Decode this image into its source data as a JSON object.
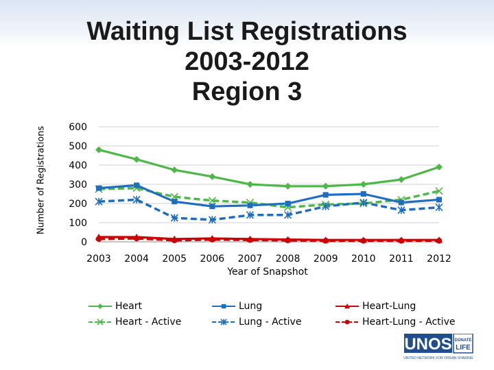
{
  "chart_data": {
    "type": "line",
    "title_lines": [
      "Waiting List Registrations",
      "2003-2012",
      "Region 3"
    ],
    "xlabel": "Year of Snapshot",
    "ylabel": "Number of Registrations",
    "categories": [
      "2003",
      "2004",
      "2005",
      "2006",
      "2007",
      "2008",
      "2009",
      "2010",
      "2011",
      "2012"
    ],
    "ylim": [
      0,
      600
    ],
    "yticks": [
      "0",
      "100",
      "200",
      "300",
      "400",
      "500",
      "600"
    ],
    "grid": true,
    "legend_position": "bottom",
    "series": [
      {
        "name": "Heart",
        "color": "#4db848",
        "dash": false,
        "marker": "diamond",
        "values": [
          480,
          430,
          375,
          340,
          300,
          290,
          290,
          300,
          325,
          390
        ]
      },
      {
        "name": "Heart - Active",
        "color": "#4db848",
        "dash": true,
        "marker": "x",
        "values": [
          275,
          280,
          235,
          215,
          205,
          180,
          195,
          200,
          220,
          265
        ]
      },
      {
        "name": "Lung",
        "color": "#1f6dc0",
        "dash": false,
        "marker": "square",
        "values": [
          280,
          295,
          210,
          185,
          190,
          200,
          245,
          250,
          205,
          220
        ]
      },
      {
        "name": "Lung - Active",
        "color": "#1f6dc0",
        "dash": true,
        "marker": "star",
        "values": [
          210,
          220,
          125,
          115,
          140,
          140,
          185,
          205,
          165,
          180
        ]
      },
      {
        "name": "Heart-Lung",
        "color": "#cc0000",
        "dash": false,
        "marker": "triangle",
        "values": [
          25,
          25,
          15,
          18,
          15,
          12,
          10,
          10,
          10,
          10
        ]
      },
      {
        "name": "Heart-Lung - Active",
        "color": "#cc0000",
        "dash": true,
        "marker": "circle",
        "values": [
          15,
          18,
          8,
          12,
          10,
          8,
          6,
          6,
          6,
          6
        ]
      }
    ]
  },
  "logo": {
    "name": "UNOS",
    "badge_top": "DONATE",
    "badge_bottom": "LIFE",
    "tagline": "UNITED NETWORK FOR ORGAN SHARING",
    "brand_color": "#1f4e8c"
  }
}
